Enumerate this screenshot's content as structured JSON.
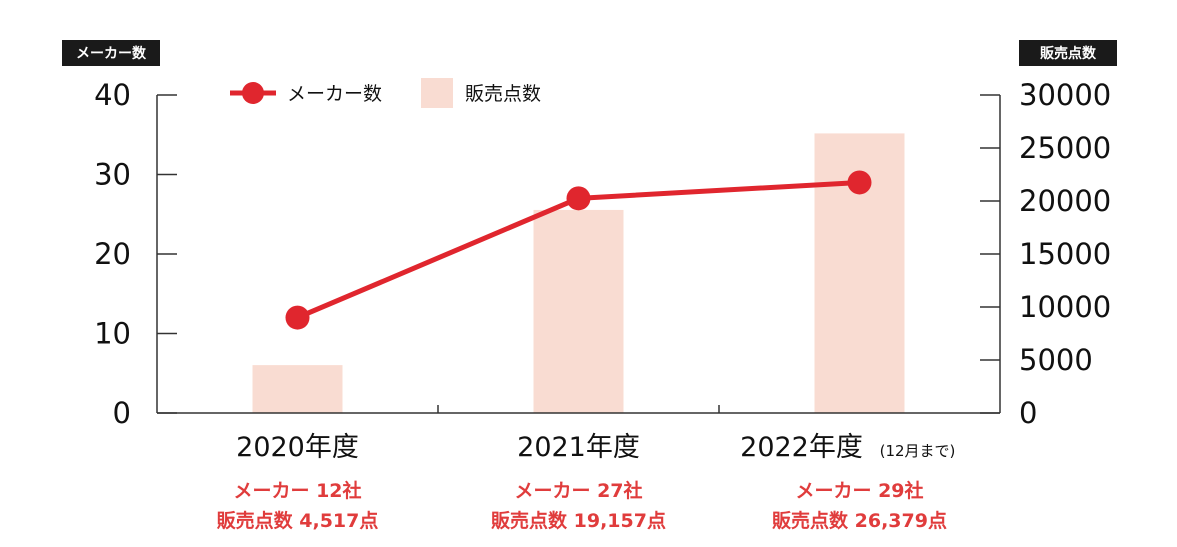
{
  "chart_data": {
    "type": "bar+line",
    "categories": [
      "2020年度",
      "2021年度",
      "2022年度"
    ],
    "category_notes": [
      "",
      "",
      "(12月まで)"
    ],
    "series": [
      {
        "name": "メーカー数",
        "type": "line",
        "axis": "left",
        "values": [
          12,
          27,
          29
        ],
        "color": "#e0262e"
      },
      {
        "name": "販売点数",
        "type": "bar",
        "axis": "right",
        "values": [
          4517,
          19157,
          26379
        ],
        "color": "#f9dcd2"
      }
    ],
    "left_axis": {
      "title": "メーカー数",
      "ylim": [
        0,
        40
      ],
      "ticks": [
        "0",
        "10",
        "20",
        "30",
        "40"
      ]
    },
    "right_axis": {
      "title": "販売点数",
      "ylim": [
        0,
        30000
      ],
      "ticks": [
        "0",
        "5000",
        "10000",
        "15000",
        "20000",
        "25000",
        "30000"
      ]
    },
    "annotations": [
      {
        "maker": "メーカー 12社",
        "sales": "販売点数 4,517点"
      },
      {
        "maker": "メーカー 27社",
        "sales": "販売点数 19,157点"
      },
      {
        "maker": "メーカー 29社",
        "sales": "販売点数 26,379点"
      }
    ],
    "legend_position": "top-left",
    "grid": false
  }
}
